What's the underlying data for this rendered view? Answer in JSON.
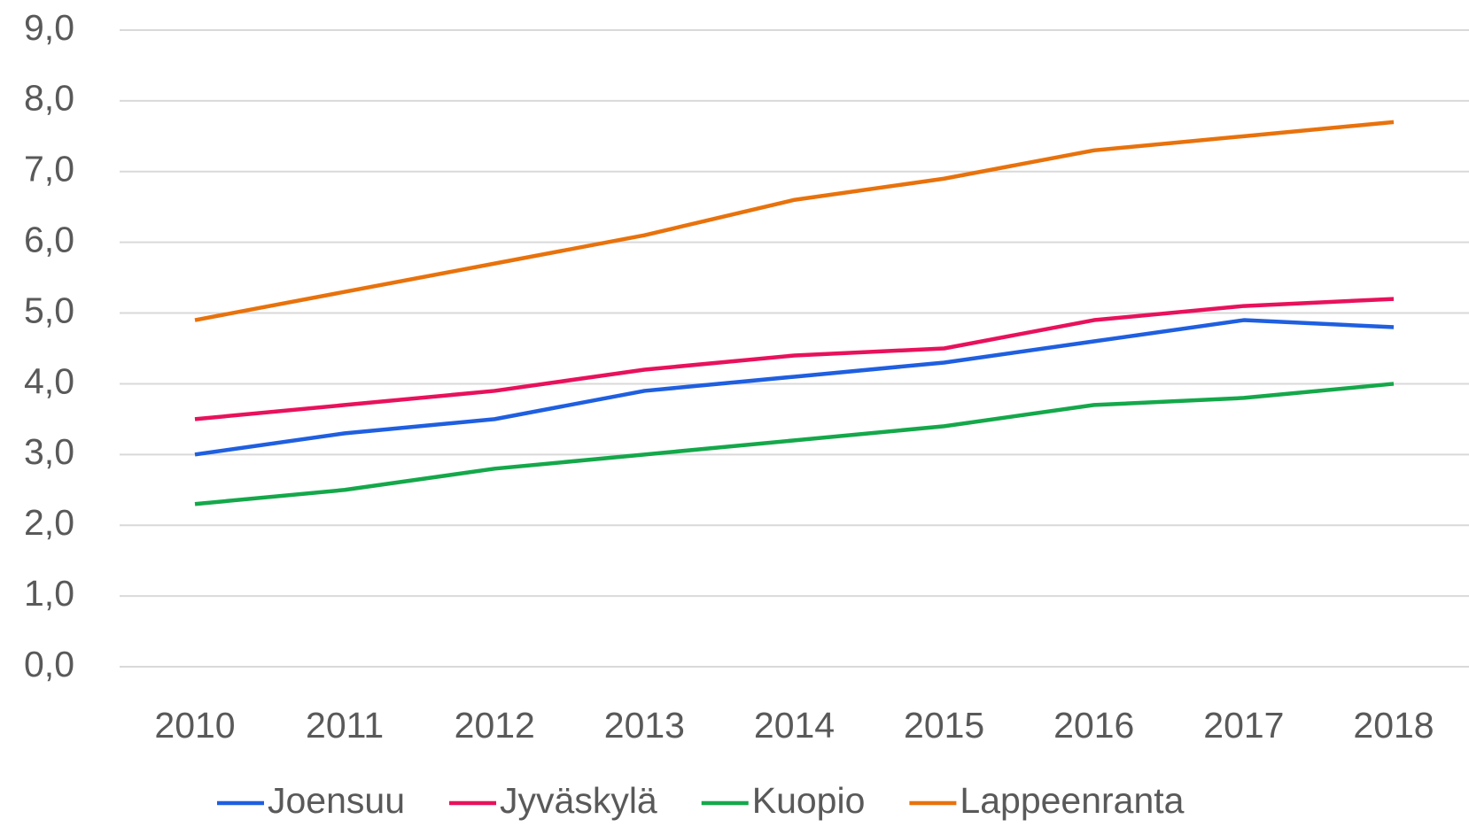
{
  "chart_data": {
    "type": "line",
    "categories": [
      "2010",
      "2011",
      "2012",
      "2013",
      "2014",
      "2015",
      "2016",
      "2017",
      "2018"
    ],
    "series": [
      {
        "name": "Joensuu",
        "color": "#1f5fe0",
        "values": [
          3.0,
          3.3,
          3.5,
          3.9,
          4.1,
          4.3,
          4.6,
          4.9,
          4.8
        ]
      },
      {
        "name": "Jyväskylä",
        "color": "#e8115c",
        "values": [
          3.5,
          3.7,
          3.9,
          4.2,
          4.4,
          4.5,
          4.9,
          5.1,
          5.2
        ]
      },
      {
        "name": "Kuopio",
        "color": "#14a84a",
        "values": [
          2.3,
          2.5,
          2.8,
          3.0,
          3.2,
          3.4,
          3.7,
          3.8,
          4.0
        ]
      },
      {
        "name": "Lappeenranta",
        "color": "#e8720c",
        "values": [
          4.9,
          5.3,
          5.7,
          6.1,
          6.6,
          6.9,
          7.3,
          7.5,
          7.7
        ]
      }
    ],
    "ylim": [
      0,
      9
    ],
    "yticks": [
      {
        "value": 0,
        "label": "0,0"
      },
      {
        "value": 1,
        "label": "1,0"
      },
      {
        "value": 2,
        "label": "2,0"
      },
      {
        "value": 3,
        "label": "3,0"
      },
      {
        "value": 4,
        "label": "4,0"
      },
      {
        "value": 5,
        "label": "5,0"
      },
      {
        "value": 6,
        "label": "6,0"
      },
      {
        "value": 7,
        "label": "7,0"
      },
      {
        "value": 8,
        "label": "8,0"
      },
      {
        "value": 9,
        "label": "9,0"
      }
    ],
    "grid": true,
    "legend": "bottom"
  }
}
